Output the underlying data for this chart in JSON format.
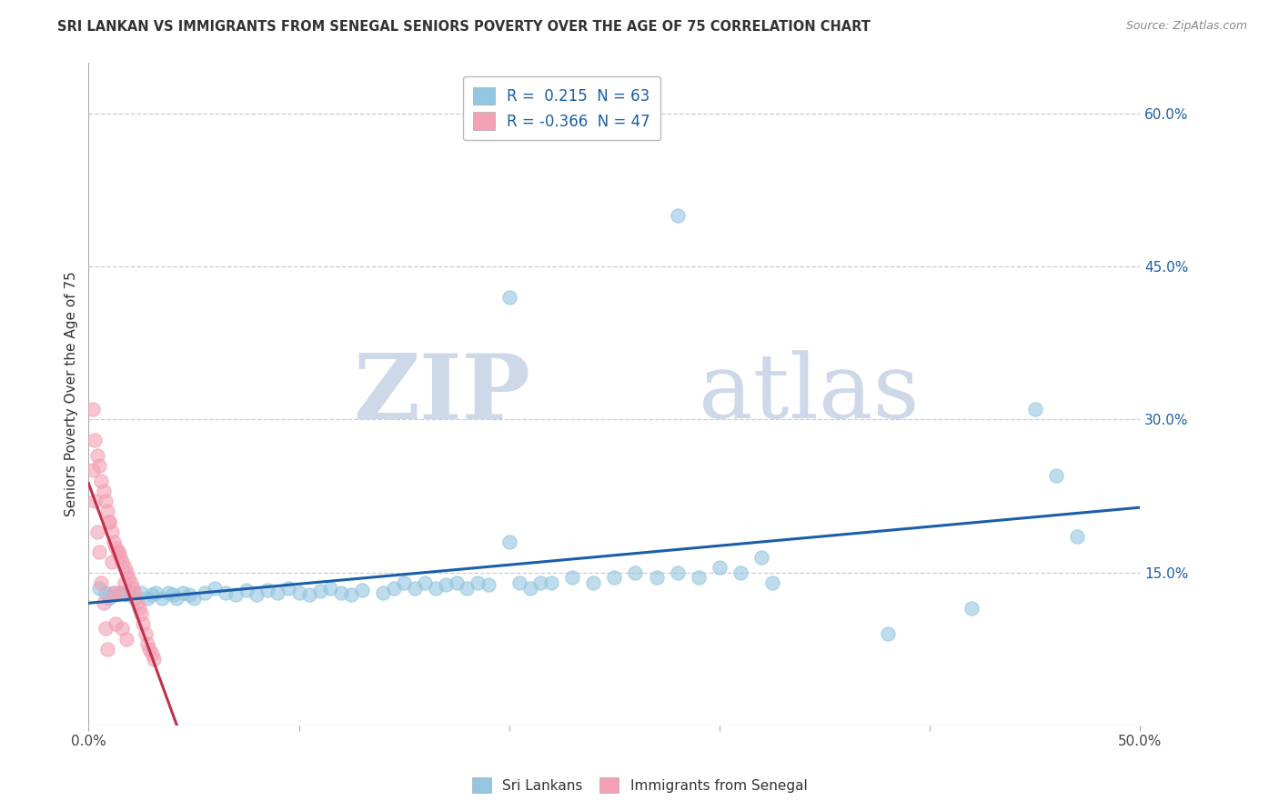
{
  "title": "SRI LANKAN VS IMMIGRANTS FROM SENEGAL SENIORS POVERTY OVER THE AGE OF 75 CORRELATION CHART",
  "source": "Source: ZipAtlas.com",
  "ylabel": "Seniors Poverty Over the Age of 75",
  "xlim": [
    0.0,
    0.5
  ],
  "ylim": [
    0.0,
    0.65
  ],
  "x_tick_positions": [
    0.0,
    0.1,
    0.2,
    0.3,
    0.4,
    0.5
  ],
  "x_tick_labels": [
    "0.0%",
    "",
    "",
    "",
    "",
    "50.0%"
  ],
  "y_tick_vals": [
    0.15,
    0.3,
    0.45,
    0.6
  ],
  "y_tick_labels": [
    "15.0%",
    "30.0%",
    "45.0%",
    "60.0%"
  ],
  "sri_lankan_color": "#93c6e0",
  "senegal_color": "#f4a0b5",
  "blue_line_color": "#1a5ea8",
  "red_line_color": "#c0304a",
  "background_color": "#ffffff",
  "watermark_color": "#cdd8e8",
  "grid_color": "#cccccc",
  "sri_lankans": [
    [
      0.005,
      0.135
    ],
    [
      0.008,
      0.13
    ],
    [
      0.01,
      0.125
    ],
    [
      0.012,
      0.13
    ],
    [
      0.015,
      0.13
    ],
    [
      0.018,
      0.128
    ],
    [
      0.02,
      0.13
    ],
    [
      0.022,
      0.125
    ],
    [
      0.025,
      0.13
    ],
    [
      0.028,
      0.125
    ],
    [
      0.03,
      0.128
    ],
    [
      0.032,
      0.13
    ],
    [
      0.035,
      0.125
    ],
    [
      0.038,
      0.13
    ],
    [
      0.04,
      0.128
    ],
    [
      0.042,
      0.125
    ],
    [
      0.045,
      0.13
    ],
    [
      0.048,
      0.128
    ],
    [
      0.05,
      0.125
    ],
    [
      0.055,
      0.13
    ],
    [
      0.06,
      0.135
    ],
    [
      0.065,
      0.13
    ],
    [
      0.07,
      0.128
    ],
    [
      0.075,
      0.133
    ],
    [
      0.08,
      0.128
    ],
    [
      0.085,
      0.133
    ],
    [
      0.09,
      0.13
    ],
    [
      0.095,
      0.135
    ],
    [
      0.1,
      0.13
    ],
    [
      0.105,
      0.128
    ],
    [
      0.11,
      0.132
    ],
    [
      0.115,
      0.135
    ],
    [
      0.12,
      0.13
    ],
    [
      0.125,
      0.128
    ],
    [
      0.13,
      0.133
    ],
    [
      0.14,
      0.13
    ],
    [
      0.145,
      0.135
    ],
    [
      0.15,
      0.14
    ],
    [
      0.155,
      0.135
    ],
    [
      0.16,
      0.14
    ],
    [
      0.165,
      0.135
    ],
    [
      0.17,
      0.138
    ],
    [
      0.175,
      0.14
    ],
    [
      0.18,
      0.135
    ],
    [
      0.185,
      0.14
    ],
    [
      0.19,
      0.138
    ],
    [
      0.2,
      0.18
    ],
    [
      0.205,
      0.14
    ],
    [
      0.21,
      0.135
    ],
    [
      0.215,
      0.14
    ],
    [
      0.22,
      0.14
    ],
    [
      0.23,
      0.145
    ],
    [
      0.24,
      0.14
    ],
    [
      0.25,
      0.145
    ],
    [
      0.26,
      0.15
    ],
    [
      0.27,
      0.145
    ],
    [
      0.28,
      0.15
    ],
    [
      0.29,
      0.145
    ],
    [
      0.3,
      0.155
    ],
    [
      0.31,
      0.15
    ],
    [
      0.32,
      0.165
    ],
    [
      0.325,
      0.14
    ],
    [
      0.2,
      0.42
    ],
    [
      0.28,
      0.5
    ],
    [
      0.45,
      0.31
    ],
    [
      0.46,
      0.245
    ],
    [
      0.47,
      0.185
    ],
    [
      0.38,
      0.09
    ],
    [
      0.42,
      0.115
    ]
  ],
  "senegal": [
    [
      0.002,
      0.31
    ],
    [
      0.003,
      0.28
    ],
    [
      0.004,
      0.265
    ],
    [
      0.005,
      0.255
    ],
    [
      0.006,
      0.24
    ],
    [
      0.007,
      0.23
    ],
    [
      0.008,
      0.22
    ],
    [
      0.009,
      0.21
    ],
    [
      0.01,
      0.2
    ],
    [
      0.011,
      0.19
    ],
    [
      0.012,
      0.18
    ],
    [
      0.013,
      0.175
    ],
    [
      0.014,
      0.17
    ],
    [
      0.015,
      0.165
    ],
    [
      0.016,
      0.16
    ],
    [
      0.017,
      0.155
    ],
    [
      0.018,
      0.15
    ],
    [
      0.019,
      0.145
    ],
    [
      0.02,
      0.14
    ],
    [
      0.021,
      0.135
    ],
    [
      0.022,
      0.13
    ],
    [
      0.023,
      0.12
    ],
    [
      0.024,
      0.115
    ],
    [
      0.025,
      0.11
    ],
    [
      0.026,
      0.1
    ],
    [
      0.027,
      0.09
    ],
    [
      0.028,
      0.08
    ],
    [
      0.029,
      0.075
    ],
    [
      0.03,
      0.07
    ],
    [
      0.031,
      0.065
    ],
    [
      0.002,
      0.25
    ],
    [
      0.003,
      0.22
    ],
    [
      0.004,
      0.19
    ],
    [
      0.005,
      0.17
    ],
    [
      0.006,
      0.14
    ],
    [
      0.007,
      0.12
    ],
    [
      0.008,
      0.095
    ],
    [
      0.009,
      0.075
    ],
    [
      0.01,
      0.2
    ],
    [
      0.011,
      0.16
    ],
    [
      0.012,
      0.13
    ],
    [
      0.013,
      0.1
    ],
    [
      0.014,
      0.17
    ],
    [
      0.015,
      0.13
    ],
    [
      0.016,
      0.095
    ],
    [
      0.017,
      0.14
    ],
    [
      0.018,
      0.085
    ]
  ]
}
